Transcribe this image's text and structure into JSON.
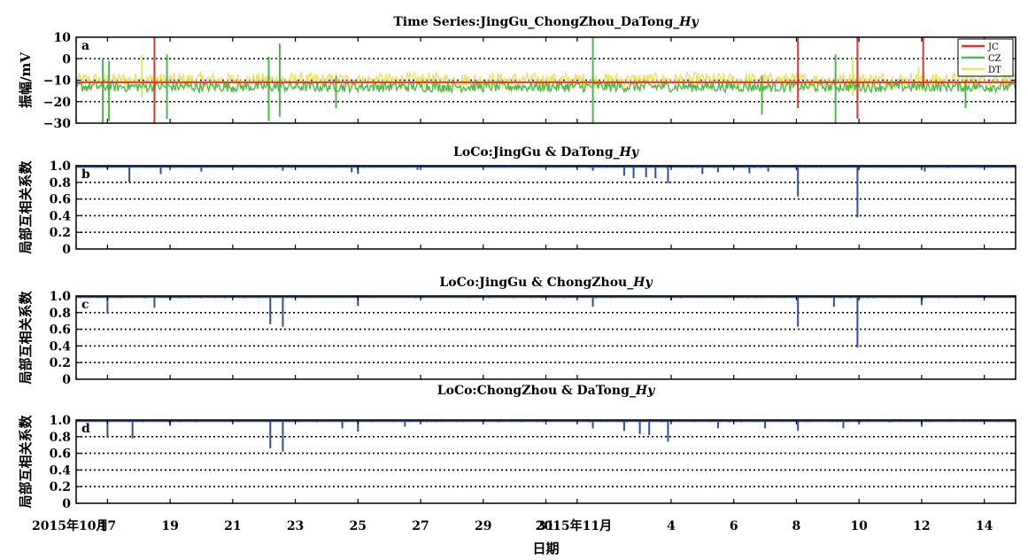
{
  "xlabel": "日期",
  "x_ticks": [
    "2015年10月",
    "17",
    "19",
    "21",
    "23",
    "25",
    "27",
    "29",
    "31",
    "2015年11月",
    "4",
    "6",
    "8",
    "10",
    "12",
    "14"
  ],
  "x_range": [
    "2015-10-16",
    "2015-11-15"
  ],
  "colors": {
    "JC": "#e8332b",
    "CZ": "#4db848",
    "DT": "#ece35a",
    "coef": "#2c4fa3"
  },
  "panels": [
    {
      "title": "Time Series:JingGu_ChongZhou_DaTong_Hy",
      "title_main": "Time Series:JingGu_ChongZhou_DaTong_",
      "title_italic": "Hy",
      "letter": "a",
      "ylabel": "振幅/mV",
      "y_ticks": [
        "10",
        "0",
        "−10",
        "−20",
        "−30"
      ],
      "legend": [
        "JC",
        "CZ",
        "DT"
      ]
    },
    {
      "title": "LoCo:JingGu & DaTong_Hy",
      "title_main": "LoCo:JingGu & DaTong_",
      "title_italic": "Hy",
      "letter": "b",
      "ylabel": "局部互相关系数",
      "y_ticks": [
        "1.0",
        "0.8",
        "0.6",
        "0.4",
        "0.2",
        "0"
      ]
    },
    {
      "title": "LoCo:JingGu & ChongZhou_Hy",
      "title_main": "LoCo:JingGu & ChongZhou_",
      "title_italic": "Hy",
      "letter": "c",
      "ylabel": "局部互相关系数",
      "y_ticks": [
        "1.0",
        "0.8",
        "0.6",
        "0.4",
        "0.2",
        "0"
      ]
    },
    {
      "title": "LoCo:ChongZhou & DaTong_Hy",
      "title_main": "LoCo:ChongZhou & DaTong_",
      "title_italic": "Hy",
      "letter": "d",
      "ylabel": "局部互相关系数",
      "y_ticks": [
        "1.0",
        "0.8",
        "0.6",
        "0.4",
        "0.2",
        "0"
      ]
    }
  ],
  "chart_data": [
    {
      "type": "line",
      "title": "Time Series:JingGu_ChongZhou_DaTong_Hy",
      "xlabel": "日期",
      "ylabel": "振幅/mV",
      "x_unit": "date",
      "xlim": [
        "2015-10-16",
        "2015-11-15"
      ],
      "ylim": [
        -30,
        10
      ],
      "grid": "dotted horizontal",
      "legend_position": "top-right",
      "series": [
        {
          "name": "JC",
          "baseline": -11,
          "spikes": [
            {
              "x": "2015-10-18.5",
              "lo": -30,
              "hi": 10
            },
            {
              "x": "2015-11-08.05",
              "lo": -23,
              "hi": 10
            },
            {
              "x": "2015-11-09.95",
              "lo": -28,
              "hi": 10
            },
            {
              "x": "2015-11-12.05",
              "lo": -13,
              "hi": 10
            }
          ]
        },
        {
          "name": "CZ",
          "baseline": -13,
          "noise": 2.5,
          "spikes": [
            {
              "x": "2015-10-16.85",
              "lo": -30,
              "hi": 0
            },
            {
              "x": "2015-10-17.05",
              "lo": -29,
              "hi": -1
            },
            {
              "x": "2015-10-18.9",
              "lo": -28,
              "hi": 2
            },
            {
              "x": "2015-10-22.15",
              "lo": -29,
              "hi": 1
            },
            {
              "x": "2015-10-22.5",
              "lo": -27,
              "hi": 7
            },
            {
              "x": "2015-10-24.3",
              "lo": -23,
              "hi": -8
            },
            {
              "x": "2015-11-01.5",
              "lo": -30,
              "hi": 10
            },
            {
              "x": "2015-11-06.9",
              "lo": -26,
              "hi": -8
            },
            {
              "x": "2015-11-09.25",
              "lo": -30,
              "hi": 2
            },
            {
              "x": "2015-11-13.4",
              "lo": -23,
              "hi": -10
            }
          ]
        },
        {
          "name": "DT",
          "baseline": -10,
          "noise": 3.5,
          "spikes": [
            {
              "x": "2015-10-18.1",
              "lo": -18,
              "hi": 2
            },
            {
              "x": "2015-11-09.8",
              "lo": -17,
              "hi": 1
            },
            {
              "x": "2015-11-11.9",
              "lo": -15,
              "hi": -4
            }
          ]
        }
      ]
    },
    {
      "type": "line",
      "title": "LoCo:JingGu & DaTong_Hy",
      "xlabel": "日期",
      "ylabel": "局部互相关系数",
      "x_unit": "date",
      "xlim": [
        "2015-10-16",
        "2015-11-15"
      ],
      "ylim": [
        0,
        1.0
      ],
      "baseline": 1.0,
      "dips": [
        {
          "x": "2015-10-17.0",
          "y": 0.96
        },
        {
          "x": "2015-10-17.7",
          "y": 0.8
        },
        {
          "x": "2015-10-18.7",
          "y": 0.9
        },
        {
          "x": "2015-10-20.0",
          "y": 0.93
        },
        {
          "x": "2015-10-22.6",
          "y": 0.94
        },
        {
          "x": "2015-10-24.8",
          "y": 0.92
        },
        {
          "x": "2015-10-25.0",
          "y": 0.9
        },
        {
          "x": "2015-10-26.9",
          "y": 0.95
        },
        {
          "x": "2015-11-01.5",
          "y": 0.94
        },
        {
          "x": "2015-11-02.5",
          "y": 0.88
        },
        {
          "x": "2015-11-02.8",
          "y": 0.85
        },
        {
          "x": "2015-11-03.2",
          "y": 0.86
        },
        {
          "x": "2015-11-03.5",
          "y": 0.85
        },
        {
          "x": "2015-11-03.9",
          "y": 0.79
        },
        {
          "x": "2015-11-05.0",
          "y": 0.9
        },
        {
          "x": "2015-11-05.5",
          "y": 0.92
        },
        {
          "x": "2015-11-06.5",
          "y": 0.91
        },
        {
          "x": "2015-11-07.1",
          "y": 0.93
        },
        {
          "x": "2015-11-08.05",
          "y": 0.63
        },
        {
          "x": "2015-11-09.95",
          "y": 0.38
        },
        {
          "x": "2015-11-12.1",
          "y": 0.93
        }
      ]
    },
    {
      "type": "line",
      "title": "LoCo:JingGu & ChongZhou_Hy",
      "xlabel": "日期",
      "ylabel": "局部互相关系数",
      "x_unit": "date",
      "xlim": [
        "2015-10-16",
        "2015-11-15"
      ],
      "ylim": [
        0,
        1.0
      ],
      "baseline": 1.0,
      "dips": [
        {
          "x": "2015-10-17.0",
          "y": 0.79
        },
        {
          "x": "2015-10-18.5",
          "y": 0.86
        },
        {
          "x": "2015-10-19.0",
          "y": 0.95
        },
        {
          "x": "2015-10-22.2",
          "y": 0.66
        },
        {
          "x": "2015-10-22.6",
          "y": 0.63
        },
        {
          "x": "2015-10-25.0",
          "y": 0.88
        },
        {
          "x": "2015-11-01.5",
          "y": 0.87
        },
        {
          "x": "2015-11-04.0",
          "y": 0.95
        },
        {
          "x": "2015-11-08.05",
          "y": 0.63
        },
        {
          "x": "2015-11-09.2",
          "y": 0.87
        },
        {
          "x": "2015-11-09.95",
          "y": 0.38
        },
        {
          "x": "2015-11-12.0",
          "y": 0.89
        }
      ]
    },
    {
      "type": "line",
      "title": "LoCo:ChongZhou & DaTong_Hy",
      "xlabel": "日期",
      "ylabel": "局部互相关系数",
      "x_unit": "date",
      "xlim": [
        "2015-10-16",
        "2015-11-15"
      ],
      "ylim": [
        0,
        1.0
      ],
      "baseline": 1.0,
      "dips": [
        {
          "x": "2015-10-17.0",
          "y": 0.79
        },
        {
          "x": "2015-10-17.8",
          "y": 0.78
        },
        {
          "x": "2015-10-19.0",
          "y": 0.93
        },
        {
          "x": "2015-10-22.2",
          "y": 0.66
        },
        {
          "x": "2015-10-22.6",
          "y": 0.62
        },
        {
          "x": "2015-10-24.5",
          "y": 0.9
        },
        {
          "x": "2015-10-25.0",
          "y": 0.86
        },
        {
          "x": "2015-10-26.5",
          "y": 0.92
        },
        {
          "x": "2015-11-01.5",
          "y": 0.9
        },
        {
          "x": "2015-11-02.5",
          "y": 0.87
        },
        {
          "x": "2015-11-03.0",
          "y": 0.83
        },
        {
          "x": "2015-11-03.3",
          "y": 0.82
        },
        {
          "x": "2015-11-03.9",
          "y": 0.74
        },
        {
          "x": "2015-11-05.5",
          "y": 0.9
        },
        {
          "x": "2015-11-07.0",
          "y": 0.9
        },
        {
          "x": "2015-11-08.05",
          "y": 0.87
        },
        {
          "x": "2015-11-09.5",
          "y": 0.9
        },
        {
          "x": "2015-11-12.0",
          "y": 0.92
        }
      ]
    }
  ]
}
